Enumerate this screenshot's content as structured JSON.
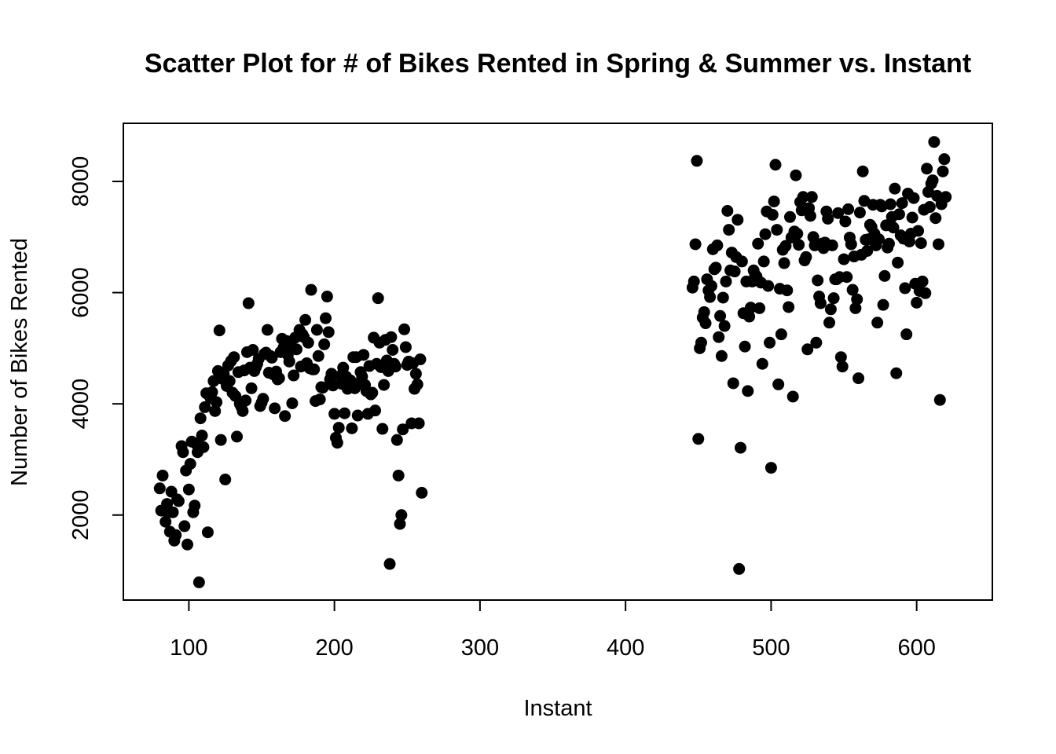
{
  "chart_data": {
    "type": "scatter",
    "title": "Scatter Plot for # of Bikes Rented in Spring & Summer vs. Instant",
    "xlabel": "Instant",
    "ylabel": "Number of Bikes Rented",
    "xlim": [
      55,
      652
    ],
    "ylim": [
      471,
      9045
    ],
    "xticks": [
      100,
      200,
      300,
      400,
      500,
      600
    ],
    "yticks": [
      2000,
      4000,
      6000,
      8000
    ],
    "xtick_labels": [
      "100",
      "200",
      "300",
      "400",
      "500",
      "600"
    ],
    "ytick_labels": [
      "2000",
      "4000",
      "6000",
      "8000"
    ],
    "grid": false,
    "legend": "none",
    "marker_color": "#000000",
    "points": [
      [
        80,
        2480
      ],
      [
        81,
        2080
      ],
      [
        82,
        2710
      ],
      [
        84,
        1880
      ],
      [
        85,
        2200
      ],
      [
        86,
        2050
      ],
      [
        87,
        1700
      ],
      [
        88,
        2420
      ],
      [
        89,
        2050
      ],
      [
        90,
        1540
      ],
      [
        91,
        1640
      ],
      [
        92,
        2280
      ],
      [
        93,
        2250
      ],
      [
        95,
        3240
      ],
      [
        96,
        3130
      ],
      [
        97,
        1800
      ],
      [
        98,
        2800
      ],
      [
        99,
        1470
      ],
      [
        100,
        2460
      ],
      [
        101,
        2920
      ],
      [
        102,
        3320
      ],
      [
        103,
        2050
      ],
      [
        104,
        2170
      ],
      [
        105,
        3280
      ],
      [
        106,
        3130
      ],
      [
        107,
        790
      ],
      [
        108,
        3740
      ],
      [
        109,
        3430
      ],
      [
        110,
        3220
      ],
      [
        111,
        3940
      ],
      [
        112,
        4190
      ],
      [
        113,
        1690
      ],
      [
        114,
        4150
      ],
      [
        115,
        4100
      ],
      [
        116,
        4210
      ],
      [
        117,
        4410
      ],
      [
        118,
        3870
      ],
      [
        119,
        4030
      ],
      [
        120,
        4590
      ],
      [
        121,
        5320
      ],
      [
        122,
        3350
      ],
      [
        123,
        4450
      ],
      [
        124,
        4540
      ],
      [
        125,
        2640
      ],
      [
        126,
        4320
      ],
      [
        127,
        4690
      ],
      [
        128,
        4410
      ],
      [
        129,
        4770
      ],
      [
        130,
        4200
      ],
      [
        131,
        4840
      ],
      [
        132,
        4140
      ],
      [
        133,
        3410
      ],
      [
        134,
        4570
      ],
      [
        135,
        4000
      ],
      [
        136,
        3950
      ],
      [
        137,
        3870
      ],
      [
        138,
        4600
      ],
      [
        139,
        4060
      ],
      [
        140,
        4930
      ],
      [
        141,
        5810
      ],
      [
        142,
        4650
      ],
      [
        143,
        4280
      ],
      [
        144,
        4970
      ],
      [
        145,
        4590
      ],
      [
        146,
        4660
      ],
      [
        147,
        4720
      ],
      [
        148,
        4810
      ],
      [
        149,
        3960
      ],
      [
        150,
        4020
      ],
      [
        151,
        4090
      ],
      [
        152,
        4900
      ],
      [
        153,
        4920
      ],
      [
        154,
        5330
      ],
      [
        155,
        4560
      ],
      [
        156,
        4860
      ],
      [
        157,
        4830
      ],
      [
        158,
        4530
      ],
      [
        159,
        3920
      ],
      [
        160,
        4580
      ],
      [
        161,
        4440
      ],
      [
        162,
        4460
      ],
      [
        163,
        4930
      ],
      [
        164,
        5170
      ],
      [
        165,
        5010
      ],
      [
        166,
        3780
      ],
      [
        167,
        5130
      ],
      [
        168,
        4880
      ],
      [
        169,
        4760
      ],
      [
        170,
        5040
      ],
      [
        171,
        4010
      ],
      [
        172,
        4510
      ],
      [
        173,
        5190
      ],
      [
        174,
        4980
      ],
      [
        175,
        5220
      ],
      [
        176,
        5330
      ],
      [
        177,
        4670
      ],
      [
        178,
        5250
      ],
      [
        179,
        5200
      ],
      [
        180,
        5510
      ],
      [
        181,
        4730
      ],
      [
        182,
        5100
      ],
      [
        183,
        4640
      ],
      [
        184,
        6050
      ],
      [
        185,
        4620
      ],
      [
        186,
        4620
      ],
      [
        187,
        4050
      ],
      [
        188,
        5330
      ],
      [
        189,
        4860
      ],
      [
        190,
        4080
      ],
      [
        191,
        4300
      ],
      [
        192,
        4290
      ],
      [
        193,
        5070
      ],
      [
        194,
        5540
      ],
      [
        195,
        5930
      ],
      [
        196,
        5290
      ],
      [
        197,
        4440
      ],
      [
        198,
        4540
      ],
      [
        199,
        4330
      ],
      [
        200,
        3820
      ],
      [
        201,
        3390
      ],
      [
        202,
        3300
      ],
      [
        203,
        3570
      ],
      [
        204,
        4500
      ],
      [
        205,
        4360
      ],
      [
        206,
        4650
      ],
      [
        207,
        3830
      ],
      [
        208,
        4490
      ],
      [
        209,
        4270
      ],
      [
        210,
        4330
      ],
      [
        211,
        4420
      ],
      [
        212,
        3560
      ],
      [
        213,
        4840
      ],
      [
        214,
        4280
      ],
      [
        215,
        4840
      ],
      [
        216,
        3790
      ],
      [
        217,
        4370
      ],
      [
        218,
        4570
      ],
      [
        219,
        4490
      ],
      [
        220,
        4880
      ],
      [
        221,
        4340
      ],
      [
        222,
        4230
      ],
      [
        223,
        3820
      ],
      [
        224,
        4680
      ],
      [
        225,
        4170
      ],
      [
        226,
        4200
      ],
      [
        227,
        5190
      ],
      [
        228,
        3880
      ],
      [
        229,
        4720
      ],
      [
        230,
        5900
      ],
      [
        231,
        5100
      ],
      [
        232,
        4660
      ],
      [
        233,
        3550
      ],
      [
        234,
        4340
      ],
      [
        235,
        5150
      ],
      [
        236,
        4780
      ],
      [
        237,
        4590
      ],
      [
        238,
        1120
      ],
      [
        239,
        5200
      ],
      [
        240,
        4970
      ],
      [
        241,
        4720
      ],
      [
        242,
        4670
      ],
      [
        243,
        3350
      ],
      [
        244,
        2710
      ],
      [
        245,
        1840
      ],
      [
        246,
        2000
      ],
      [
        247,
        3540
      ],
      [
        248,
        5340
      ],
      [
        249,
        5020
      ],
      [
        250,
        4700
      ],
      [
        251,
        4760
      ],
      [
        252,
        4730
      ],
      [
        253,
        3650
      ],
      [
        254,
        4730
      ],
      [
        255,
        4270
      ],
      [
        256,
        4540
      ],
      [
        257,
        4350
      ],
      [
        258,
        3650
      ],
      [
        259,
        4800
      ],
      [
        260,
        2400
      ],
      [
        446,
        6090
      ],
      [
        447,
        6200
      ],
      [
        448,
        6870
      ],
      [
        449,
        8370
      ],
      [
        450,
        3370
      ],
      [
        451,
        5000
      ],
      [
        452,
        5100
      ],
      [
        453,
        5550
      ],
      [
        454,
        5650
      ],
      [
        455,
        5450
      ],
      [
        456,
        6240
      ],
      [
        457,
        6040
      ],
      [
        458,
        5920
      ],
      [
        459,
        6120
      ],
      [
        460,
        6780
      ],
      [
        461,
        6420
      ],
      [
        462,
        6450
      ],
      [
        463,
        6850
      ],
      [
        464,
        5200
      ],
      [
        465,
        5580
      ],
      [
        466,
        4860
      ],
      [
        467,
        5910
      ],
      [
        468,
        5400
      ],
      [
        469,
        6200
      ],
      [
        470,
        7470
      ],
      [
        471,
        7130
      ],
      [
        472,
        6400
      ],
      [
        473,
        6720
      ],
      [
        474,
        4370
      ],
      [
        475,
        6380
      ],
      [
        476,
        6640
      ],
      [
        477,
        7310
      ],
      [
        478,
        1030
      ],
      [
        479,
        3210
      ],
      [
        480,
        6560
      ],
      [
        481,
        5630
      ],
      [
        482,
        5030
      ],
      [
        483,
        6200
      ],
      [
        484,
        4230
      ],
      [
        485,
        5570
      ],
      [
        486,
        5730
      ],
      [
        487,
        6200
      ],
      [
        488,
        6400
      ],
      [
        489,
        6320
      ],
      [
        490,
        6290
      ],
      [
        491,
        6880
      ],
      [
        492,
        5720
      ],
      [
        493,
        6180
      ],
      [
        494,
        4720
      ],
      [
        495,
        6560
      ],
      [
        496,
        7050
      ],
      [
        497,
        7460
      ],
      [
        498,
        6120
      ],
      [
        499,
        5100
      ],
      [
        500,
        2850
      ],
      [
        501,
        7400
      ],
      [
        502,
        7640
      ],
      [
        503,
        8300
      ],
      [
        504,
        7130
      ],
      [
        505,
        4350
      ],
      [
        506,
        6070
      ],
      [
        507,
        5250
      ],
      [
        508,
        6770
      ],
      [
        509,
        6530
      ],
      [
        510,
        6840
      ],
      [
        511,
        6040
      ],
      [
        512,
        5740
      ],
      [
        513,
        7360
      ],
      [
        514,
        6990
      ],
      [
        515,
        4130
      ],
      [
        516,
        7100
      ],
      [
        517,
        8110
      ],
      [
        518,
        7060
      ],
      [
        519,
        6860
      ],
      [
        520,
        7630
      ],
      [
        521,
        7480
      ],
      [
        522,
        7720
      ],
      [
        523,
        6580
      ],
      [
        524,
        6640
      ],
      [
        525,
        4980
      ],
      [
        526,
        7520
      ],
      [
        527,
        7380
      ],
      [
        528,
        7720
      ],
      [
        529,
        7000
      ],
      [
        530,
        6850
      ],
      [
        531,
        5100
      ],
      [
        532,
        6220
      ],
      [
        533,
        5930
      ],
      [
        534,
        5810
      ],
      [
        535,
        6880
      ],
      [
        536,
        6800
      ],
      [
        537,
        6900
      ],
      [
        538,
        7460
      ],
      [
        539,
        7330
      ],
      [
        540,
        5460
      ],
      [
        541,
        5700
      ],
      [
        542,
        6850
      ],
      [
        543,
        5900
      ],
      [
        544,
        6240
      ],
      [
        545,
        6240
      ],
      [
        546,
        7430
      ],
      [
        547,
        6280
      ],
      [
        548,
        4840
      ],
      [
        549,
        4670
      ],
      [
        550,
        6600
      ],
      [
        551,
        7280
      ],
      [
        552,
        6280
      ],
      [
        553,
        7500
      ],
      [
        554,
        6990
      ],
      [
        555,
        6870
      ],
      [
        556,
        6050
      ],
      [
        557,
        6650
      ],
      [
        558,
        5720
      ],
      [
        559,
        5880
      ],
      [
        560,
        4460
      ],
      [
        561,
        7440
      ],
      [
        562,
        6680
      ],
      [
        563,
        8180
      ],
      [
        564,
        7650
      ],
      [
        565,
        6950
      ],
      [
        566,
        6750
      ],
      [
        567,
        6960
      ],
      [
        568,
        7220
      ],
      [
        569,
        7180
      ],
      [
        570,
        7580
      ],
      [
        571,
        7060
      ],
      [
        572,
        6850
      ],
      [
        573,
        5460
      ],
      [
        574,
        6960
      ],
      [
        575,
        7580
      ],
      [
        576,
        7550
      ],
      [
        577,
        5780
      ],
      [
        578,
        6300
      ],
      [
        579,
        7210
      ],
      [
        580,
        6810
      ],
      [
        581,
        6880
      ],
      [
        582,
        7590
      ],
      [
        583,
        7360
      ],
      [
        584,
        7170
      ],
      [
        585,
        7870
      ],
      [
        586,
        4550
      ],
      [
        587,
        6540
      ],
      [
        588,
        7410
      ],
      [
        589,
        7030
      ],
      [
        590,
        7610
      ],
      [
        591,
        6970
      ],
      [
        592,
        6080
      ],
      [
        593,
        5250
      ],
      [
        594,
        7780
      ],
      [
        595,
        6920
      ],
      [
        596,
        7060
      ],
      [
        597,
        7350
      ],
      [
        598,
        7700
      ],
      [
        599,
        6160
      ],
      [
        600,
        5820
      ],
      [
        601,
        7110
      ],
      [
        602,
        6030
      ],
      [
        603,
        6890
      ],
      [
        604,
        6200
      ],
      [
        605,
        7490
      ],
      [
        606,
        5990
      ],
      [
        607,
        8230
      ],
      [
        608,
        7810
      ],
      [
        609,
        7540
      ],
      [
        610,
        7960
      ],
      [
        611,
        8020
      ],
      [
        612,
        8710
      ],
      [
        613,
        7340
      ],
      [
        614,
        7740
      ],
      [
        615,
        6870
      ],
      [
        616,
        4070
      ],
      [
        617,
        7590
      ],
      [
        618,
        8180
      ],
      [
        619,
        8400
      ],
      [
        620,
        7720
      ]
    ]
  }
}
